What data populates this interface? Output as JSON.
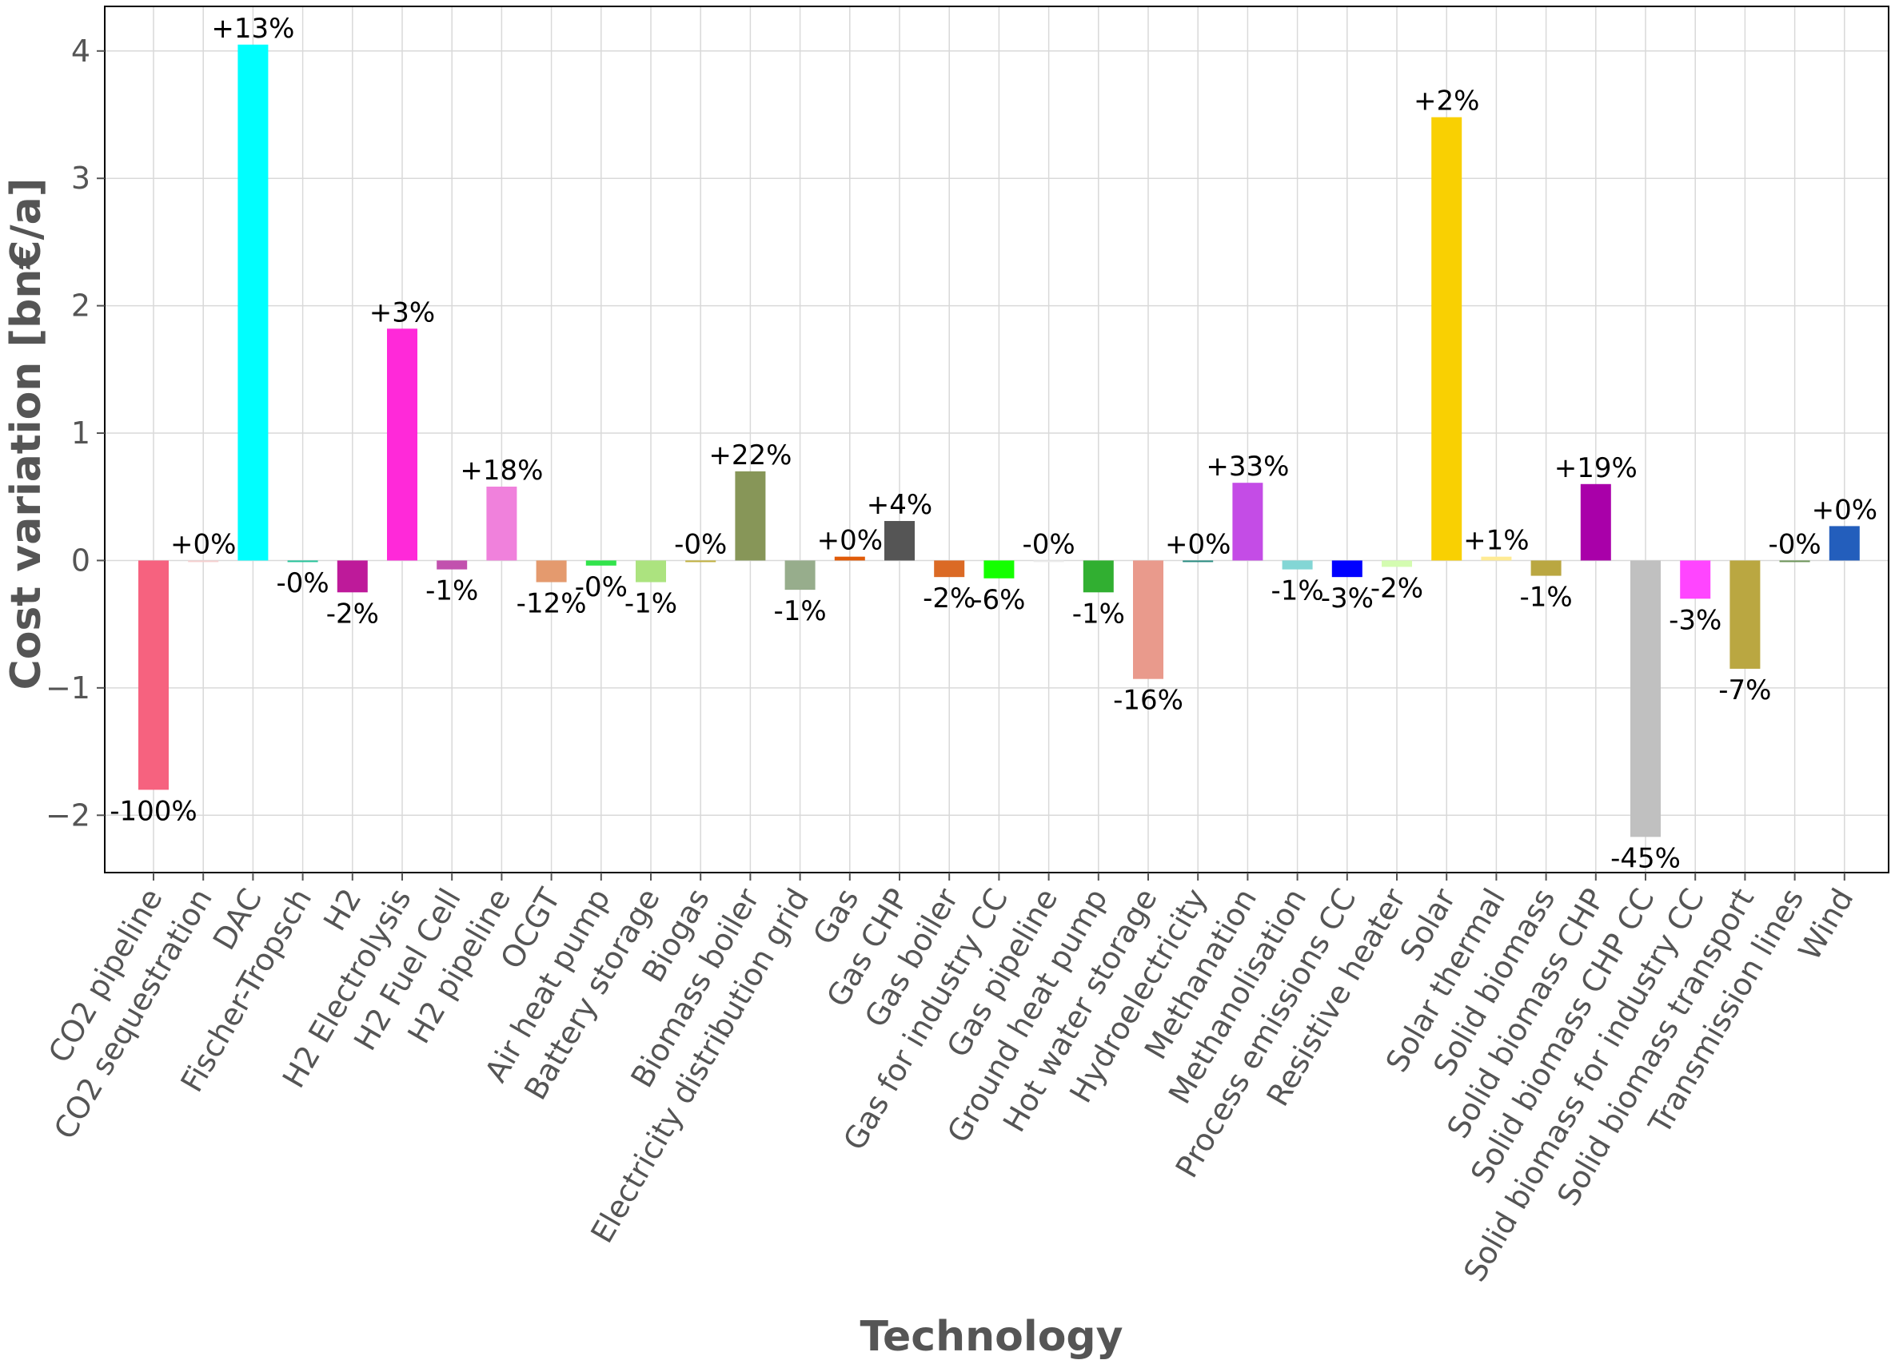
{
  "chart_data": {
    "type": "bar",
    "title": "",
    "xlabel": "Technology",
    "ylabel": "Cost variation [bn€/a]",
    "ylim": [
      -2.45,
      4.35
    ],
    "yticks": [
      -2,
      -1,
      0,
      1,
      2,
      3,
      4
    ],
    "ytick_labels": [
      "−2",
      "−1",
      "0",
      "1",
      "2",
      "3",
      "4"
    ],
    "grid": true,
    "legend": "none",
    "categories": [
      "CO2 pipeline",
      "CO2 sequestration",
      "DAC",
      "Fischer-Tropsch",
      "H2",
      "H2 Electrolysis",
      "H2 Fuel Cell",
      "H2 pipeline",
      "OCGT",
      "Air heat pump",
      "Battery storage",
      "Biogas",
      "Biomass boiler",
      "Electricity distribution grid",
      "Gas",
      "Gas CHP",
      "Gas boiler",
      "Gas for industry CC",
      "Gas pipeline",
      "Ground heat pump",
      "Hot water storage",
      "Hydroelectricity",
      "Methanation",
      "Methanolisation",
      "Process emissions CC",
      "Resistive heater",
      "Solar",
      "Solar thermal",
      "Solid biomass",
      "Solid biomass CHP",
      "Solid biomass CHP CC",
      "Solid biomass for industry CC",
      "Solid biomass transport",
      "Transmission lines",
      "Wind"
    ],
    "values": [
      -1.8,
      0.0,
      4.05,
      -0.01,
      -0.25,
      1.82,
      -0.07,
      0.58,
      -0.17,
      -0.04,
      -0.17,
      0.0,
      0.7,
      -0.23,
      0.03,
      0.31,
      -0.13,
      -0.14,
      0.0,
      -0.25,
      -0.93,
      0.0,
      0.61,
      -0.07,
      -0.13,
      -0.05,
      3.48,
      0.03,
      -0.12,
      0.6,
      -2.17,
      -0.3,
      -0.85,
      0.0,
      0.27
    ],
    "data_labels": [
      "-100%",
      "+0%",
      "+13%",
      "-0%",
      "-2%",
      "+3%",
      "-1%",
      "+18%",
      "-12%",
      "-0%",
      "-1%",
      "-0%",
      "+22%",
      "-1%",
      "+0%",
      "+4%",
      "-2%",
      "-6%",
      "-0%",
      "-1%",
      "-16%",
      "+0%",
      "+33%",
      "-1%",
      "-3%",
      "-2%",
      "+2%",
      "+1%",
      "-1%",
      "+19%",
      "-45%",
      "-3%",
      "-7%",
      "-0%",
      "+0%"
    ],
    "colors": [
      "#f6627f",
      "#f5d0d0",
      "#00ffff",
      "#25c49a",
      "#be1a9a",
      "#ff29d9",
      "#c251ae",
      "#f081dc",
      "#e49a6e",
      "#31e34b",
      "#ace37f",
      "#c0af3e",
      "#879658",
      "#97ad8c",
      "#e05b09",
      "#555555",
      "#db6a25",
      "#14ff00",
      "#ebebeb",
      "#31af31",
      "#e99a8c",
      "#298c81",
      "#c44ce6",
      "#83d6d5",
      "#0000ff",
      "#d4fcb1",
      "#f9d002",
      "#ffeb94",
      "#baa741",
      "#a900a9",
      "#c0c0c0",
      "#ff45ff",
      "#baa741",
      "#6c9459",
      "#235ebc"
    ]
  }
}
